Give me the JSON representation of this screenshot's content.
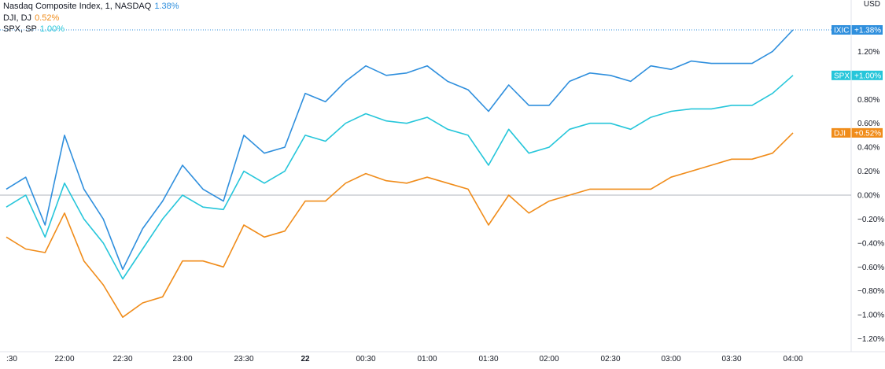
{
  "legend": [
    {
      "name": "Nasdaq Composite Index, 1, NASDAQ",
      "value": "1.38%",
      "color": "#2f8fdd"
    },
    {
      "name": "DJI, DJ",
      "value": "0.52%",
      "color": "#f08c1a"
    },
    {
      "name": "SPX, SP",
      "value": "1.00%",
      "color": "#26c6da"
    }
  ],
  "axis": {
    "currency": "USD",
    "y_ticks": [
      "1.20%",
      "0.80%",
      "0.60%",
      "0.40%",
      "0.20%",
      "0.00%",
      "−0.20%",
      "−0.40%",
      "−0.60%",
      "−0.80%",
      "−1.00%",
      "−1.20%"
    ],
    "x_ticks": [
      ":30",
      "22:00",
      "22:30",
      "23:00",
      "23:30",
      "22",
      "00:30",
      "01:00",
      "01:30",
      "02:00",
      "02:30",
      "03:00",
      "03:30",
      "04:00"
    ]
  },
  "tags": [
    {
      "symbol": "IXIC",
      "value": "+1.38%",
      "color": "#2f8fdd"
    },
    {
      "symbol": "SPX",
      "value": "+1.00%",
      "color": "#26c6da"
    },
    {
      "symbol": "DJI",
      "value": "+0.52%",
      "color": "#f08c1a"
    }
  ],
  "chart_data": {
    "type": "line",
    "yunit": "%",
    "x_ticks": [
      ":30",
      "22:00",
      "22:30",
      "23:00",
      "23:30",
      "22",
      "00:30",
      "01:00",
      "01:30",
      "02:00",
      "02:30",
      "03:00",
      "03:30",
      "04:00"
    ],
    "ylim": [
      -1.25,
      1.38
    ],
    "grid": false,
    "series": [
      {
        "name": "Nasdaq Composite Index, 1, NASDAQ",
        "color": "#2f8fdd",
        "x": [
          "21:30",
          "21:40",
          "21:50",
          "22:00",
          "22:10",
          "22:20",
          "22:30",
          "22:40",
          "22:50",
          "23:00",
          "23:10",
          "23:20",
          "23:30",
          "23:40",
          "23:50",
          "00:00",
          "00:10",
          "00:20",
          "00:30",
          "00:40",
          "00:50",
          "01:00",
          "01:10",
          "01:20",
          "01:30",
          "01:40",
          "01:50",
          "02:00",
          "02:10",
          "02:20",
          "02:30",
          "02:40",
          "02:50",
          "03:00",
          "03:10",
          "03:20",
          "03:30",
          "03:40",
          "03:50",
          "04:00"
        ],
        "y": [
          0.05,
          0.15,
          -0.25,
          0.5,
          0.05,
          -0.2,
          -0.62,
          -0.28,
          -0.05,
          0.25,
          0.05,
          -0.05,
          0.5,
          0.35,
          0.4,
          0.85,
          0.78,
          0.95,
          1.08,
          1.0,
          1.02,
          1.08,
          0.95,
          0.88,
          0.7,
          0.92,
          0.75,
          0.75,
          0.95,
          1.02,
          1.0,
          0.95,
          1.08,
          1.05,
          1.12,
          1.1,
          1.1,
          1.1,
          1.2,
          1.38
        ]
      },
      {
        "name": "DJI, DJ",
        "color": "#f08c1a",
        "x": [
          "21:30",
          "21:40",
          "21:50",
          "22:00",
          "22:10",
          "22:20",
          "22:30",
          "22:40",
          "22:50",
          "23:00",
          "23:10",
          "23:20",
          "23:30",
          "23:40",
          "23:50",
          "00:00",
          "00:10",
          "00:20",
          "00:30",
          "00:40",
          "00:50",
          "01:00",
          "01:10",
          "01:20",
          "01:30",
          "01:40",
          "01:50",
          "02:00",
          "02:10",
          "02:20",
          "02:30",
          "02:40",
          "02:50",
          "03:00",
          "03:10",
          "03:20",
          "03:30",
          "03:40",
          "03:50",
          "04:00"
        ],
        "y": [
          -0.35,
          -0.45,
          -0.48,
          -0.15,
          -0.55,
          -0.75,
          -1.02,
          -0.9,
          -0.85,
          -0.55,
          -0.55,
          -0.6,
          -0.25,
          -0.35,
          -0.3,
          -0.05,
          -0.05,
          0.1,
          0.18,
          0.12,
          0.1,
          0.15,
          0.1,
          0.05,
          -0.25,
          0.0,
          -0.15,
          -0.05,
          0.0,
          0.05,
          0.05,
          0.05,
          0.05,
          0.15,
          0.2,
          0.25,
          0.3,
          0.3,
          0.35,
          0.52
        ]
      },
      {
        "name": "SPX, SP",
        "color": "#26c6da",
        "x": [
          "21:30",
          "21:40",
          "21:50",
          "22:00",
          "22:10",
          "22:20",
          "22:30",
          "22:40",
          "22:50",
          "23:00",
          "23:10",
          "23:20",
          "23:30",
          "23:40",
          "23:50",
          "00:00",
          "00:10",
          "00:20",
          "00:30",
          "00:40",
          "00:50",
          "01:00",
          "01:10",
          "01:20",
          "01:30",
          "01:40",
          "01:50",
          "02:00",
          "02:10",
          "02:20",
          "02:30",
          "02:40",
          "02:50",
          "03:00",
          "03:10",
          "03:20",
          "03:30",
          "03:40",
          "03:50",
          "04:00"
        ],
        "y": [
          -0.1,
          0.0,
          -0.35,
          0.1,
          -0.2,
          -0.4,
          -0.7,
          -0.45,
          -0.2,
          0.0,
          -0.1,
          -0.12,
          0.2,
          0.1,
          0.2,
          0.5,
          0.45,
          0.6,
          0.68,
          0.62,
          0.6,
          0.65,
          0.55,
          0.5,
          0.25,
          0.55,
          0.35,
          0.4,
          0.55,
          0.6,
          0.6,
          0.55,
          0.65,
          0.7,
          0.72,
          0.72,
          0.75,
          0.75,
          0.85,
          1.0
        ]
      }
    ]
  }
}
